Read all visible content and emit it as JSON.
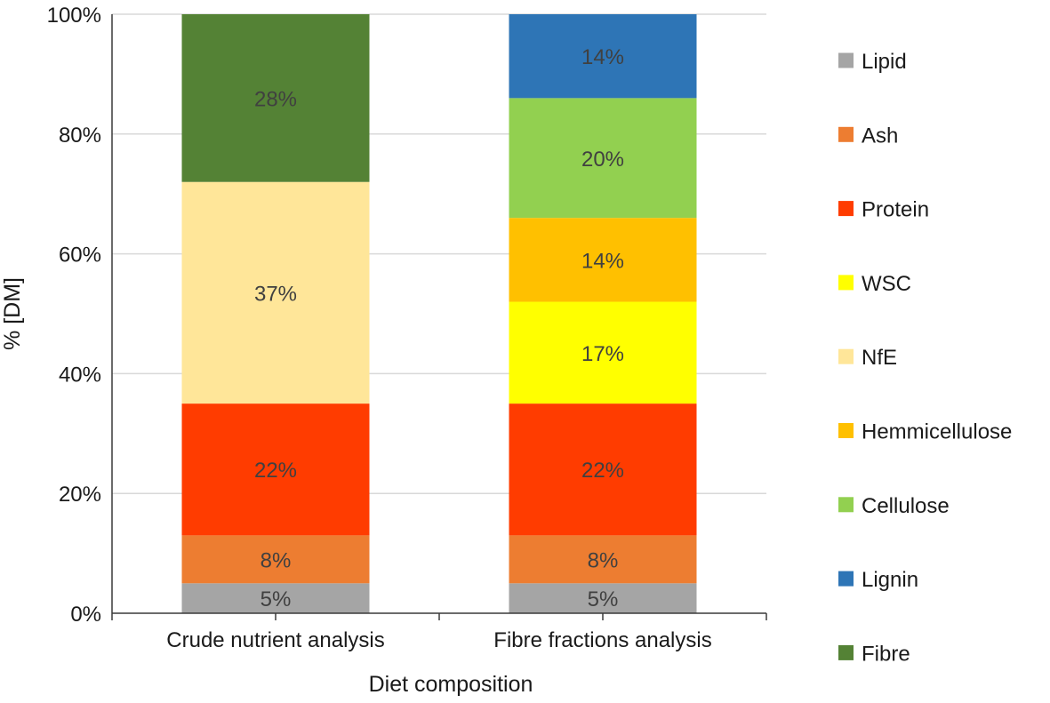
{
  "chart_data": {
    "type": "bar",
    "stacked": true,
    "title": "",
    "xlabel": "Diet composition",
    "ylabel": "% [DM]",
    "ylim": [
      0,
      100
    ],
    "yticks": [
      0,
      20,
      40,
      60,
      80,
      100
    ],
    "ytick_format": "percent",
    "grid": true,
    "legend_position": "right",
    "categories": [
      "Crude nutrient analysis",
      "Fibre fractions analysis"
    ],
    "series": [
      {
        "name": "Lipid",
        "color": "#a5a5a5",
        "values": [
          5,
          5
        ],
        "labels": [
          "5%",
          "5%"
        ]
      },
      {
        "name": "Ash",
        "color": "#ed7d31",
        "values": [
          8,
          8
        ],
        "labels": [
          "8%",
          "8%"
        ]
      },
      {
        "name": "Protein",
        "color": "#ff3c00",
        "values": [
          22,
          22
        ],
        "labels": [
          "22%",
          "22%"
        ]
      },
      {
        "name": "WSC",
        "color": "#ffff00",
        "values": [
          0,
          17
        ],
        "labels": [
          "",
          "17%"
        ]
      },
      {
        "name": "NfE",
        "color": "#ffe699",
        "values": [
          37,
          0
        ],
        "labels": [
          "37%",
          ""
        ]
      },
      {
        "name": "Hemmicellulose",
        "color": "#ffc000",
        "values": [
          0,
          14
        ],
        "labels": [
          "",
          "14%"
        ]
      },
      {
        "name": "Cellulose",
        "color": "#92d050",
        "values": [
          0,
          20
        ],
        "labels": [
          "",
          "20%"
        ]
      },
      {
        "name": "Lignin",
        "color": "#2e75b6",
        "values": [
          0,
          14
        ],
        "labels": [
          "",
          "14%"
        ]
      },
      {
        "name": "Fibre",
        "color": "#548235",
        "values": [
          28,
          0
        ],
        "labels": [
          "28%",
          ""
        ]
      }
    ]
  }
}
